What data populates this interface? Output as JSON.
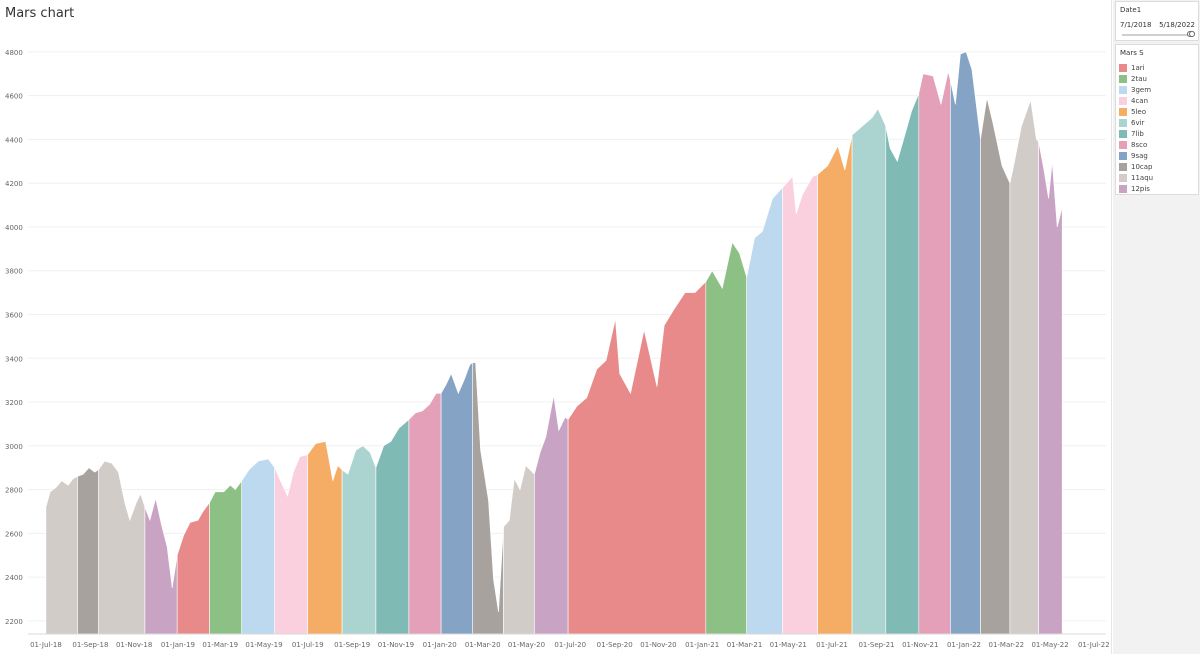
{
  "title": "Mars chart",
  "filter": {
    "title": "Date1",
    "start": "7/1/2018",
    "end": "5/18/2022",
    "range_fraction": [
      0.97,
      1.0
    ]
  },
  "legend": {
    "title": "Mars S",
    "items": [
      {
        "label": "1ari",
        "color": "#e88a8a"
      },
      {
        "label": "2tau",
        "color": "#8cc084"
      },
      {
        "label": "3gem",
        "color": "#bcd9ef"
      },
      {
        "label": "4can",
        "color": "#fad0df"
      },
      {
        "label": "5leo",
        "color": "#f5ad66"
      },
      {
        "label": "6vir",
        "color": "#abd4d1"
      },
      {
        "label": "7lib",
        "color": "#80bab5"
      },
      {
        "label": "8sco",
        "color": "#e4a0b8"
      },
      {
        "label": "9sag",
        "color": "#85a3c4"
      },
      {
        "label": "10cap",
        "color": "#a8a29f"
      },
      {
        "label": "11aqu",
        "color": "#d2ccc9"
      },
      {
        "label": "12pis",
        "color": "#c9a3c4"
      }
    ]
  },
  "chart_data": {
    "type": "area",
    "title": "Mars chart",
    "xlabel": "",
    "ylabel": "",
    "ylim": [
      2140,
      4900
    ],
    "yticks": [
      2200,
      2400,
      2600,
      2800,
      3000,
      3200,
      3400,
      3600,
      3800,
      4000,
      4200,
      4400,
      4600,
      4800
    ],
    "xlim": [
      "2018-06-06",
      "2022-07-18"
    ],
    "xticks": [
      {
        "date": "2018-07-01",
        "label": "01-Jul-18"
      },
      {
        "date": "2018-09-01",
        "label": "01-Sep-18"
      },
      {
        "date": "2018-11-01",
        "label": "01-Nov-18"
      },
      {
        "date": "2019-01-01",
        "label": "01-Jan-19"
      },
      {
        "date": "2019-03-01",
        "label": "01-Mar-19"
      },
      {
        "date": "2019-05-01",
        "label": "01-May-19"
      },
      {
        "date": "2019-07-01",
        "label": "01-Jul-19"
      },
      {
        "date": "2019-09-01",
        "label": "01-Sep-19"
      },
      {
        "date": "2019-11-01",
        "label": "01-Nov-19"
      },
      {
        "date": "2020-01-01",
        "label": "01-Jan-20"
      },
      {
        "date": "2020-03-01",
        "label": "01-Mar-20"
      },
      {
        "date": "2020-05-01",
        "label": "01-May-20"
      },
      {
        "date": "2020-07-01",
        "label": "01-Jul-20"
      },
      {
        "date": "2020-09-01",
        "label": "01-Sep-20"
      },
      {
        "date": "2020-11-01",
        "label": "01-Nov-20"
      },
      {
        "date": "2021-01-01",
        "label": "01-Jan-21"
      },
      {
        "date": "2021-03-01",
        "label": "01-Mar-21"
      },
      {
        "date": "2021-05-01",
        "label": "01-May-21"
      },
      {
        "date": "2021-07-01",
        "label": "01-Jul-21"
      },
      {
        "date": "2021-09-01",
        "label": "01-Sep-21"
      },
      {
        "date": "2021-11-01",
        "label": "01-Nov-21"
      },
      {
        "date": "2022-01-01",
        "label": "01-Jan-22"
      },
      {
        "date": "2022-03-01",
        "label": "01-Mar-22"
      },
      {
        "date": "2022-05-01",
        "label": "01-May-22"
      },
      {
        "date": "2022-07-01",
        "label": "01-Jul-22"
      }
    ],
    "grid": true,
    "legend_position": "right",
    "series": [
      {
        "sign": "11aqu",
        "points": [
          [
            "2018-07-01",
            2720
          ],
          [
            "2018-07-07",
            2790
          ],
          [
            "2018-07-15",
            2810
          ],
          [
            "2018-07-23",
            2840
          ],
          [
            "2018-08-01",
            2820
          ],
          [
            "2018-08-08",
            2850
          ],
          [
            "2018-08-14",
            2860
          ]
        ]
      },
      {
        "sign": "10cap",
        "points": [
          [
            "2018-08-14",
            2860
          ],
          [
            "2018-08-22",
            2870
          ],
          [
            "2018-08-30",
            2900
          ],
          [
            "2018-09-07",
            2880
          ],
          [
            "2018-09-12",
            2890
          ]
        ]
      },
      {
        "sign": "11aqu",
        "points": [
          [
            "2018-09-12",
            2890
          ],
          [
            "2018-09-21",
            2930
          ],
          [
            "2018-10-01",
            2920
          ],
          [
            "2018-10-10",
            2880
          ],
          [
            "2018-10-19",
            2740
          ],
          [
            "2018-10-26",
            2660
          ],
          [
            "2018-11-04",
            2740
          ],
          [
            "2018-11-10",
            2780
          ],
          [
            "2018-11-16",
            2720
          ]
        ]
      },
      {
        "sign": "12pis",
        "points": [
          [
            "2018-11-16",
            2720
          ],
          [
            "2018-11-23",
            2660
          ],
          [
            "2018-12-01",
            2760
          ],
          [
            "2018-12-09",
            2640
          ],
          [
            "2018-12-17",
            2540
          ],
          [
            "2018-12-24",
            2350
          ],
          [
            "2018-12-31",
            2500
          ]
        ]
      },
      {
        "sign": "1ari",
        "points": [
          [
            "2018-12-31",
            2500
          ],
          [
            "2019-01-09",
            2590
          ],
          [
            "2019-01-18",
            2650
          ],
          [
            "2019-01-29",
            2660
          ],
          [
            "2019-02-05",
            2700
          ],
          [
            "2019-02-14",
            2740
          ]
        ]
      },
      {
        "sign": "2tau",
        "points": [
          [
            "2019-02-14",
            2740
          ],
          [
            "2019-02-22",
            2790
          ],
          [
            "2019-03-06",
            2790
          ],
          [
            "2019-03-15",
            2820
          ],
          [
            "2019-03-22",
            2800
          ],
          [
            "2019-03-31",
            2840
          ]
        ]
      },
      {
        "sign": "3gem",
        "points": [
          [
            "2019-03-31",
            2840
          ],
          [
            "2019-04-10",
            2890
          ],
          [
            "2019-04-23",
            2930
          ],
          [
            "2019-05-07",
            2940
          ],
          [
            "2019-05-16",
            2900
          ]
        ]
      },
      {
        "sign": "4can",
        "points": [
          [
            "2019-05-16",
            2900
          ],
          [
            "2019-05-24",
            2840
          ],
          [
            "2019-06-03",
            2770
          ],
          [
            "2019-06-11",
            2880
          ],
          [
            "2019-06-20",
            2950
          ],
          [
            "2019-07-01",
            2960
          ]
        ]
      },
      {
        "sign": "5leo",
        "points": [
          [
            "2019-07-01",
            2960
          ],
          [
            "2019-07-12",
            3010
          ],
          [
            "2019-07-26",
            3020
          ],
          [
            "2019-08-05",
            2840
          ],
          [
            "2019-08-12",
            2910
          ],
          [
            "2019-08-18",
            2890
          ]
        ]
      },
      {
        "sign": "6vir",
        "points": [
          [
            "2019-08-18",
            2890
          ],
          [
            "2019-08-26",
            2870
          ],
          [
            "2019-09-06",
            2980
          ],
          [
            "2019-09-16",
            3000
          ],
          [
            "2019-09-26",
            2970
          ],
          [
            "2019-10-04",
            2900
          ]
        ]
      },
      {
        "sign": "7lib",
        "points": [
          [
            "2019-10-04",
            2900
          ],
          [
            "2019-10-15",
            3000
          ],
          [
            "2019-10-25",
            3020
          ],
          [
            "2019-11-05",
            3080
          ],
          [
            "2019-11-19",
            3120
          ]
        ]
      },
      {
        "sign": "8sco",
        "points": [
          [
            "2019-11-19",
            3120
          ],
          [
            "2019-11-28",
            3150
          ],
          [
            "2019-12-08",
            3160
          ],
          [
            "2019-12-18",
            3190
          ],
          [
            "2019-12-27",
            3240
          ],
          [
            "2020-01-03",
            3240
          ]
        ]
      },
      {
        "sign": "9sag",
        "points": [
          [
            "2020-01-03",
            3240
          ],
          [
            "2020-01-10",
            3280
          ],
          [
            "2020-01-17",
            3330
          ],
          [
            "2020-01-27",
            3240
          ],
          [
            "2020-02-04",
            3300
          ],
          [
            "2020-02-12",
            3370
          ],
          [
            "2020-02-16",
            3380
          ]
        ]
      },
      {
        "sign": "10cap",
        "points": [
          [
            "2020-02-16",
            3380
          ],
          [
            "2020-02-20",
            3380
          ],
          [
            "2020-02-27",
            2980
          ],
          [
            "2020-03-09",
            2750
          ],
          [
            "2020-03-16",
            2390
          ],
          [
            "2020-03-23",
            2240
          ],
          [
            "2020-03-30",
            2630
          ]
        ]
      },
      {
        "sign": "11aqu",
        "points": [
          [
            "2020-03-30",
            2630
          ],
          [
            "2020-04-07",
            2660
          ],
          [
            "2020-04-14",
            2850
          ],
          [
            "2020-04-22",
            2800
          ],
          [
            "2020-04-30",
            2910
          ],
          [
            "2020-05-12",
            2870
          ]
        ]
      },
      {
        "sign": "12pis",
        "points": [
          [
            "2020-05-12",
            2870
          ],
          [
            "2020-05-20",
            2970
          ],
          [
            "2020-05-28",
            3040
          ],
          [
            "2020-06-08",
            3230
          ],
          [
            "2020-06-15",
            3070
          ],
          [
            "2020-06-24",
            3130
          ],
          [
            "2020-06-28",
            3120
          ]
        ]
      },
      {
        "sign": "1ari",
        "points": [
          [
            "2020-06-28",
            3120
          ],
          [
            "2020-07-10",
            3180
          ],
          [
            "2020-07-24",
            3220
          ],
          [
            "2020-08-07",
            3350
          ],
          [
            "2020-08-20",
            3390
          ],
          [
            "2020-09-02",
            3580
          ],
          [
            "2020-09-08",
            3330
          ],
          [
            "2020-09-23",
            3240
          ],
          [
            "2020-10-12",
            3530
          ],
          [
            "2020-10-30",
            3270
          ],
          [
            "2020-11-09",
            3550
          ],
          [
            "2020-11-24",
            3630
          ],
          [
            "2020-12-08",
            3700
          ],
          [
            "2020-12-22",
            3700
          ],
          [
            "2021-01-06",
            3750
          ]
        ]
      },
      {
        "sign": "2tau",
        "points": [
          [
            "2021-01-06",
            3750
          ],
          [
            "2021-01-15",
            3800
          ],
          [
            "2021-01-29",
            3720
          ],
          [
            "2021-02-12",
            3930
          ],
          [
            "2021-02-22",
            3880
          ],
          [
            "2021-03-04",
            3770
          ]
        ]
      },
      {
        "sign": "3gem",
        "points": [
          [
            "2021-03-04",
            3770
          ],
          [
            "2021-03-15",
            3950
          ],
          [
            "2021-03-26",
            3980
          ],
          [
            "2021-04-09",
            4130
          ],
          [
            "2021-04-23",
            4180
          ]
        ]
      },
      {
        "sign": "4can",
        "points": [
          [
            "2021-04-23",
            4180
          ],
          [
            "2021-05-07",
            4230
          ],
          [
            "2021-05-12",
            4060
          ],
          [
            "2021-05-21",
            4150
          ],
          [
            "2021-06-04",
            4230
          ],
          [
            "2021-06-11",
            4240
          ]
        ]
      },
      {
        "sign": "5leo",
        "points": [
          [
            "2021-06-11",
            4240
          ],
          [
            "2021-06-25",
            4280
          ],
          [
            "2021-07-09",
            4370
          ],
          [
            "2021-07-19",
            4260
          ],
          [
            "2021-07-29",
            4420
          ]
        ]
      },
      {
        "sign": "6vir",
        "points": [
          [
            "2021-07-29",
            4420
          ],
          [
            "2021-08-12",
            4460
          ],
          [
            "2021-08-26",
            4500
          ],
          [
            "2021-09-03",
            4540
          ],
          [
            "2021-09-14",
            4460
          ]
        ]
      },
      {
        "sign": "7lib",
        "points": [
          [
            "2021-09-14",
            4460
          ],
          [
            "2021-09-20",
            4360
          ],
          [
            "2021-09-30",
            4300
          ],
          [
            "2021-10-08",
            4390
          ],
          [
            "2021-10-20",
            4530
          ],
          [
            "2021-10-30",
            4610
          ]
        ]
      },
      {
        "sign": "8sco",
        "points": [
          [
            "2021-10-30",
            4610
          ],
          [
            "2021-11-05",
            4700
          ],
          [
            "2021-11-19",
            4690
          ],
          [
            "2021-11-30",
            4560
          ],
          [
            "2021-12-10",
            4710
          ],
          [
            "2021-12-13",
            4670
          ]
        ]
      },
      {
        "sign": "9sag",
        "points": [
          [
            "2021-12-13",
            4670
          ],
          [
            "2021-12-20",
            4560
          ],
          [
            "2021-12-27",
            4790
          ],
          [
            "2022-01-04",
            4800
          ],
          [
            "2022-01-12",
            4720
          ],
          [
            "2022-01-24",
            4400
          ]
        ]
      },
      {
        "sign": "10cap",
        "points": [
          [
            "2022-01-24",
            4400
          ],
          [
            "2022-02-02",
            4590
          ],
          [
            "2022-02-10",
            4480
          ],
          [
            "2022-02-23",
            4280
          ],
          [
            "2022-03-06",
            4200
          ]
        ]
      },
      {
        "sign": "11aqu",
        "points": [
          [
            "2022-03-06",
            4200
          ],
          [
            "2022-03-10",
            4260
          ],
          [
            "2022-03-22",
            4460
          ],
          [
            "2022-04-04",
            4580
          ],
          [
            "2022-04-12",
            4400
          ],
          [
            "2022-04-15",
            4390
          ]
        ]
      },
      {
        "sign": "12pis",
        "points": [
          [
            "2022-04-15",
            4390
          ],
          [
            "2022-04-22",
            4270
          ],
          [
            "2022-04-29",
            4130
          ],
          [
            "2022-05-04",
            4300
          ],
          [
            "2022-05-11",
            4000
          ],
          [
            "2022-05-18",
            4090
          ]
        ]
      }
    ]
  }
}
